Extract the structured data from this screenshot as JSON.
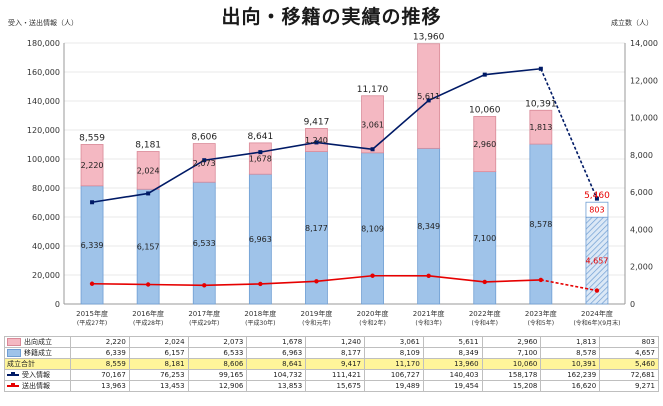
{
  "chart_data": {
    "type": "bar",
    "title": "出向・移籍の実績の推移",
    "left_axis_label": "受入・送出情報（人）",
    "right_axis_label": "成立数（人）",
    "left_ticks": [
      "0",
      "20,000",
      "40,000",
      "60,000",
      "80,000",
      "100,000",
      "120,000",
      "140,000",
      "160,000",
      "180,000"
    ],
    "right_ticks": [
      "0",
      "2,000",
      "4,000",
      "6,000",
      "8,000",
      "10,000",
      "12,000",
      "14,000"
    ],
    "ylim_left": [
      0,
      180000
    ],
    "ylim_right": [
      0,
      14000
    ],
    "categories": [
      "2015年度",
      "2016年度",
      "2017年度",
      "2018年度",
      "2019年度",
      "2020年度",
      "2021年度",
      "2022年度",
      "2023年度",
      "2024年度"
    ],
    "category_subs": [
      "(平成27年)",
      "(平成28年)",
      "(平成29年)",
      "(平成30年)",
      "(令和元年)",
      "(令和2年)",
      "(令和3年)",
      "(令和4年)",
      "(令和5年)",
      "(令和6年)(9月末)"
    ],
    "series": [
      {
        "name": "出向成立",
        "type": "bar-stack-top",
        "axis": "right",
        "color": "#f4b8c2",
        "values": [
          2220,
          2024,
          2073,
          1678,
          1240,
          3061,
          5611,
          2960,
          1813,
          803
        ],
        "labels": [
          "2,220",
          "2,024",
          "2,073",
          "1,678",
          "1,240",
          "3,061",
          "5,611",
          "2,960",
          "1,813",
          "803"
        ]
      },
      {
        "name": "移籍成立",
        "type": "bar-stack-bottom",
        "axis": "right",
        "color": "#9fc3e9",
        "values": [
          6339,
          6157,
          6533,
          6963,
          8177,
          8109,
          8349,
          7100,
          8578,
          4657
        ],
        "labels": [
          "6,339",
          "6,157",
          "6,533",
          "6,963",
          "8,177",
          "8,109",
          "8,349",
          "7,100",
          "8,578",
          "4,657"
        ]
      },
      {
        "name": "成立合計",
        "type": "total",
        "axis": "right",
        "values": [
          8559,
          8181,
          8606,
          8641,
          9417,
          11170,
          13960,
          10060,
          10391,
          5460
        ],
        "labels": [
          "8,559",
          "8,181",
          "8,606",
          "8,641",
          "9,417",
          "11,170",
          "13,960",
          "10,060",
          "10,391",
          "5,460"
        ]
      },
      {
        "name": "受入情報",
        "type": "line",
        "axis": "left",
        "color": "#001a66",
        "values": [
          70167,
          76253,
          99165,
          104732,
          111421,
          106727,
          140403,
          158178,
          162239,
          72681
        ],
        "labels": [
          "70,167",
          "76,253",
          "99,165",
          "104,732",
          "111,421",
          "106,727",
          "140,403",
          "158,178",
          "162,239",
          "72,681"
        ]
      },
      {
        "name": "送出情報",
        "type": "line",
        "axis": "left",
        "color": "#e60000",
        "values": [
          13963,
          13453,
          12906,
          13853,
          15675,
          19489,
          19454,
          15208,
          16620,
          9271
        ],
        "labels": [
          "13,963",
          "13,453",
          "12,906",
          "13,853",
          "15,675",
          "19,489",
          "19,454",
          "15,208",
          "16,620",
          "9,271"
        ]
      }
    ]
  }
}
